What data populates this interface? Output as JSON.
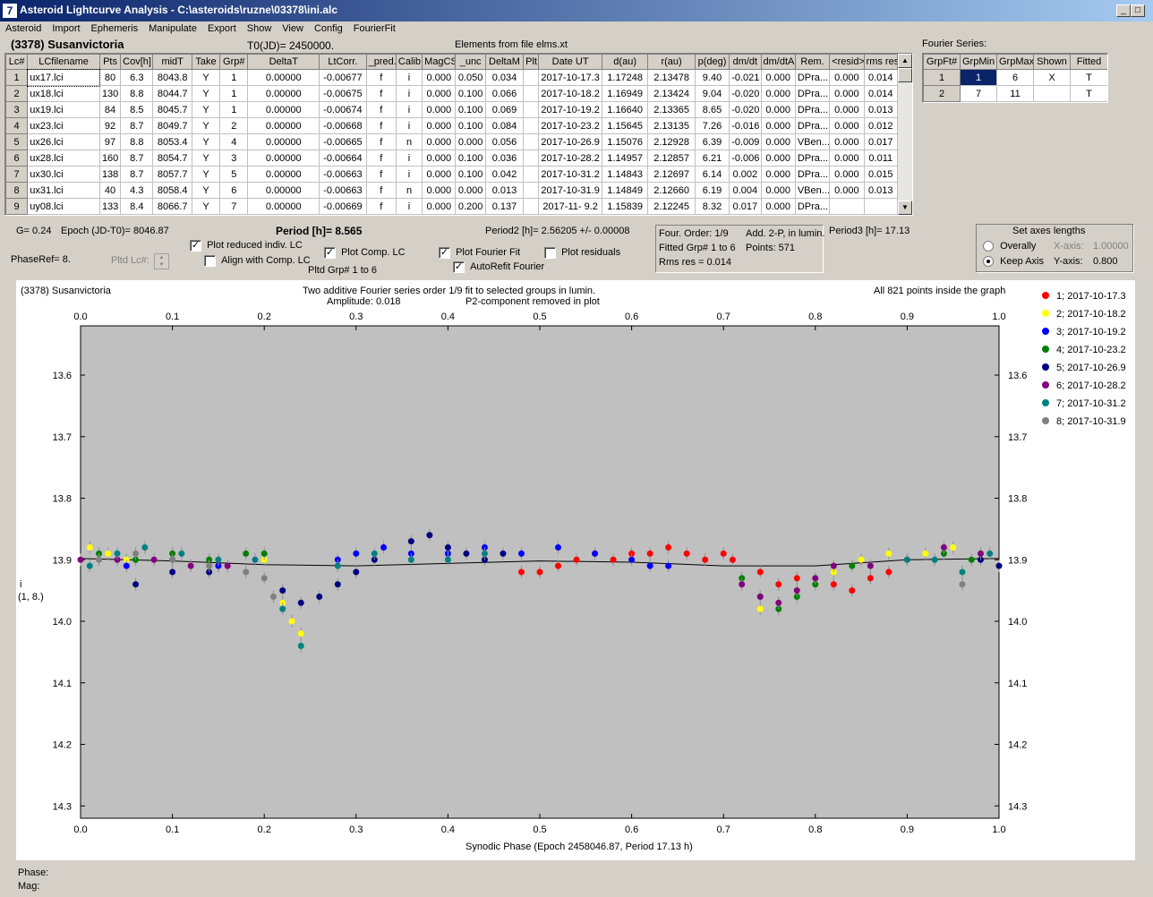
{
  "window": {
    "title": "Asteroid Lightcurve Analysis - C:\\asteroids\\ruzne\\03378\\ini.alc",
    "icon": "app-icon"
  },
  "menu": [
    "Asteroid",
    "Import",
    "Ephemeris",
    "Manipulate",
    "Export",
    "Show",
    "View",
    "Config",
    "FourierFit"
  ],
  "header": {
    "asteroid": "(3378) Susanvictoria",
    "t0": "T0(JD)= 2450000.",
    "elements": "Elements from file elms.xt"
  },
  "lc_table": {
    "columns": [
      "Lc#",
      "LCfilename",
      "Pts",
      "Cov[h]",
      "midT",
      "Take",
      "Grp#",
      "DeltaT",
      "LtCorr.",
      "_pred.",
      "Calib.",
      "MagCS",
      "_unc",
      "DeltaM",
      "Plt",
      "Date UT",
      "d(au)",
      "r(au)",
      "p(deg)",
      "dm/dt",
      "dm/dtA",
      "Rem.",
      "<resid>",
      "rms res"
    ],
    "rows": [
      [
        "1",
        "ux17.lci",
        "80",
        "6.3",
        "8043.8",
        "Y",
        "1",
        "0.00000",
        "-0.00677",
        "f",
        "i",
        "0.000",
        "0.050",
        "0.034",
        "",
        "2017-10-17.3",
        "1.17248",
        "2.13478",
        "9.40",
        "-0.021",
        "0.000",
        "DPra...",
        "0.000",
        "0.014"
      ],
      [
        "2",
        "ux18.lci",
        "130",
        "8.8",
        "8044.7",
        "Y",
        "1",
        "0.00000",
        "-0.00675",
        "f",
        "i",
        "0.000",
        "0.100",
        "0.066",
        "",
        "2017-10-18.2",
        "1.16949",
        "2.13424",
        "9.04",
        "-0.020",
        "0.000",
        "DPra...",
        "0.000",
        "0.014"
      ],
      [
        "3",
        "ux19.lci",
        "84",
        "8.5",
        "8045.7",
        "Y",
        "1",
        "0.00000",
        "-0.00674",
        "f",
        "i",
        "0.000",
        "0.100",
        "0.069",
        "",
        "2017-10-19.2",
        "1.16640",
        "2.13365",
        "8.65",
        "-0.020",
        "0.000",
        "DPra...",
        "0.000",
        "0.013"
      ],
      [
        "4",
        "ux23.lci",
        "92",
        "8.7",
        "8049.7",
        "Y",
        "2",
        "0.00000",
        "-0.00668",
        "f",
        "i",
        "0.000",
        "0.100",
        "0.084",
        "",
        "2017-10-23.2",
        "1.15645",
        "2.13135",
        "7.26",
        "-0.016",
        "0.000",
        "DPra...",
        "0.000",
        "0.012"
      ],
      [
        "5",
        "ux26.lci",
        "97",
        "8.8",
        "8053.4",
        "Y",
        "4",
        "0.00000",
        "-0.00665",
        "f",
        "n",
        "0.000",
        "0.000",
        "0.056",
        "",
        "2017-10-26.9",
        "1.15076",
        "2.12928",
        "6.39",
        "-0.009",
        "0.000",
        "VBen...",
        "0.000",
        "0.017"
      ],
      [
        "6",
        "ux28.lci",
        "160",
        "8.7",
        "8054.7",
        "Y",
        "3",
        "0.00000",
        "-0.00664",
        "f",
        "i",
        "0.000",
        "0.100",
        "0.036",
        "",
        "2017-10-28.2",
        "1.14957",
        "2.12857",
        "6.21",
        "-0.006",
        "0.000",
        "DPra...",
        "0.000",
        "0.011"
      ],
      [
        "7",
        "ux30.lci",
        "138",
        "8.7",
        "8057.7",
        "Y",
        "5",
        "0.00000",
        "-0.00663",
        "f",
        "i",
        "0.000",
        "0.100",
        "0.042",
        "",
        "2017-10-31.2",
        "1.14843",
        "2.12697",
        "6.14",
        "0.002",
        "0.000",
        "DPra...",
        "0.000",
        "0.015"
      ],
      [
        "8",
        "ux31.lci",
        "40",
        "4.3",
        "8058.4",
        "Y",
        "6",
        "0.00000",
        "-0.00663",
        "f",
        "n",
        "0.000",
        "0.000",
        "0.013",
        "",
        "2017-10-31.9",
        "1.14849",
        "2.12660",
        "6.19",
        "0.004",
        "0.000",
        "VBen...",
        "0.000",
        "0.013"
      ],
      [
        "9",
        "uy08.lci",
        "133",
        "8.4",
        "8066.7",
        "Y",
        "7",
        "0.00000",
        "-0.00669",
        "f",
        "i",
        "0.000",
        "0.200",
        "0.137",
        "",
        "2017-11- 9.2",
        "1.15839",
        "2.12245",
        "8.32",
        "0.017",
        "0.000",
        "DPra...",
        "",
        ""
      ]
    ]
  },
  "fourier_series": {
    "title": "Fourier Series:",
    "columns": [
      "GrpFt#",
      "GrpMin",
      "GrpMax",
      "Shown",
      "Fitted"
    ],
    "rows": [
      [
        "1",
        "1",
        "6",
        "X",
        "T"
      ],
      [
        "2",
        "7",
        "11",
        "",
        "T"
      ]
    ]
  },
  "params": {
    "g": "G= 0.24",
    "epoch": "Epoch (JD-T0)= 8046.87",
    "period": "Period [h]= 8.565",
    "period2": "Period2 [h]= 2.56205 +/- 0.00008",
    "period3": "Period3 [h]= 17.13",
    "phaseref": "PhaseRef= 8.",
    "pltd_lc": "Pltd Lc#:",
    "pltd_grp": "Pltd Grp#  1   to   6"
  },
  "checkboxes": {
    "plot_reduced": {
      "label": "Plot reduced indiv. LC",
      "checked": true
    },
    "align_comp": {
      "label": "Align with Comp. LC",
      "checked": false
    },
    "plot_comp": {
      "label": "Plot Comp. LC",
      "checked": true
    },
    "plot_fourier": {
      "label": "Plot Fourier Fit",
      "checked": true
    },
    "autorefit": {
      "label": "AutoRefit Fourier",
      "checked": true
    },
    "plot_residuals": {
      "label": "Plot residuals",
      "checked": false
    }
  },
  "fourier_info": {
    "order": "Four. Order:  1/9",
    "add": "Add. 2-P, in lumin.",
    "fitted": "Fitted Grp# 1 to 6",
    "points": "Points: 571",
    "rms": "Rms res      = 0.014"
  },
  "axes_box": {
    "title": "Set axes lengths",
    "overally": "Overally",
    "keep": "Keep Axis",
    "xaxis_label": "X-axis:",
    "xaxis_val": "1.00000",
    "yaxis_label": "Y-axis:",
    "yaxis_val": "0.800",
    "selected": "keep"
  },
  "plot": {
    "name": "(3378) Susanvictoria",
    "title1": "Two additive Fourier series order 1/9 fit to selected groups in lumin.",
    "title2": "Amplitude: 0.018",
    "title3": "P2-component removed in plot",
    "points_note": "All 821 points inside the graph",
    "ylabel1": "i",
    "ylabel2": "(1, 8.)",
    "xlabel": "Synodic Phase (Epoch 2458046.87, Period 17.13 h)",
    "background": "#c0c0c0"
  },
  "chart_data": {
    "type": "scatter",
    "xlim": [
      0,
      1
    ],
    "ylim": [
      13.52,
      14.32
    ],
    "y_reversed": true,
    "x_ticks": [
      "0.0",
      "0.1",
      "0.2",
      "0.3",
      "0.4",
      "0.5",
      "0.6",
      "0.7",
      "0.8",
      "0.9",
      "1.0"
    ],
    "y_ticks": [
      "13.6",
      "13.7",
      "13.8",
      "13.9",
      "14.0",
      "14.1",
      "14.2",
      "14.3"
    ],
    "legend_position": "right",
    "series": [
      {
        "name": "1; 2017-10-17.3",
        "color": "#ff0000",
        "points": [
          [
            0.48,
            13.92
          ],
          [
            0.5,
            13.92
          ],
          [
            0.52,
            13.91
          ],
          [
            0.54,
            13.9
          ],
          [
            0.56,
            13.89
          ],
          [
            0.58,
            13.9
          ],
          [
            0.6,
            13.89
          ],
          [
            0.62,
            13.89
          ],
          [
            0.64,
            13.88
          ],
          [
            0.66,
            13.89
          ],
          [
            0.68,
            13.9
          ],
          [
            0.7,
            13.89
          ],
          [
            0.71,
            13.9
          ],
          [
            0.74,
            13.92
          ],
          [
            0.76,
            13.94
          ],
          [
            0.78,
            13.93
          ],
          [
            0.82,
            13.94
          ],
          [
            0.84,
            13.95
          ],
          [
            0.86,
            13.93
          ],
          [
            0.88,
            13.92
          ]
        ]
      },
      {
        "name": "2; 2017-10-18.2",
        "color": "#ffff00",
        "points": [
          [
            0.01,
            13.88
          ],
          [
            0.03,
            13.89
          ],
          [
            0.05,
            13.9
          ],
          [
            0.08,
            13.9
          ],
          [
            0.12,
            13.91
          ],
          [
            0.15,
            13.91
          ],
          [
            0.2,
            13.9
          ],
          [
            0.22,
            13.97
          ],
          [
            0.23,
            14.0
          ],
          [
            0.24,
            14.02
          ],
          [
            0.74,
            13.98
          ],
          [
            0.76,
            13.97
          ],
          [
            0.78,
            13.95
          ],
          [
            0.82,
            13.92
          ],
          [
            0.85,
            13.9
          ],
          [
            0.88,
            13.89
          ],
          [
            0.92,
            13.89
          ],
          [
            0.95,
            13.88
          ],
          [
            0.98,
            13.89
          ]
        ]
      },
      {
        "name": "3; 2017-10-19.2",
        "color": "#0000ff",
        "points": [
          [
            0.28,
            13.9
          ],
          [
            0.3,
            13.89
          ],
          [
            0.33,
            13.88
          ],
          [
            0.36,
            13.89
          ],
          [
            0.4,
            13.89
          ],
          [
            0.44,
            13.88
          ],
          [
            0.48,
            13.89
          ],
          [
            0.52,
            13.88
          ],
          [
            0.56,
            13.89
          ],
          [
            0.6,
            13.9
          ],
          [
            0.62,
            13.91
          ],
          [
            0.64,
            13.91
          ],
          [
            0.05,
            13.91
          ],
          [
            0.1,
            13.9
          ],
          [
            0.15,
            13.91
          ]
        ]
      },
      {
        "name": "4; 2017-10-23.2",
        "color": "#008000",
        "points": [
          [
            0.02,
            13.89
          ],
          [
            0.06,
            13.9
          ],
          [
            0.1,
            13.89
          ],
          [
            0.14,
            13.9
          ],
          [
            0.18,
            13.89
          ],
          [
            0.2,
            13.89
          ],
          [
            0.72,
            13.93
          ],
          [
            0.74,
            13.96
          ],
          [
            0.76,
            13.98
          ],
          [
            0.78,
            13.96
          ],
          [
            0.8,
            13.94
          ],
          [
            0.84,
            13.91
          ],
          [
            0.94,
            13.89
          ],
          [
            0.97,
            13.9
          ]
        ]
      },
      {
        "name": "5; 2017-10-26.9",
        "color": "#000080",
        "points": [
          [
            0.06,
            13.94
          ],
          [
            0.1,
            13.92
          ],
          [
            0.14,
            13.92
          ],
          [
            0.22,
            13.95
          ],
          [
            0.24,
            13.97
          ],
          [
            0.26,
            13.96
          ],
          [
            0.28,
            13.94
          ],
          [
            0.3,
            13.92
          ],
          [
            0.32,
            13.9
          ],
          [
            0.36,
            13.87
          ],
          [
            0.38,
            13.86
          ],
          [
            0.4,
            13.88
          ],
          [
            0.42,
            13.89
          ],
          [
            0.44,
            13.9
          ],
          [
            0.46,
            13.89
          ],
          [
            0.98,
            13.9
          ],
          [
            1.0,
            13.91
          ]
        ]
      },
      {
        "name": "6; 2017-10-28.2",
        "color": "#800080",
        "points": [
          [
            0.0,
            13.9
          ],
          [
            0.04,
            13.9
          ],
          [
            0.08,
            13.9
          ],
          [
            0.12,
            13.91
          ],
          [
            0.16,
            13.91
          ],
          [
            0.72,
            13.94
          ],
          [
            0.74,
            13.96
          ],
          [
            0.76,
            13.97
          ],
          [
            0.78,
            13.95
          ],
          [
            0.8,
            13.93
          ],
          [
            0.82,
            13.91
          ],
          [
            0.86,
            13.91
          ],
          [
            0.9,
            13.9
          ],
          [
            0.94,
            13.88
          ],
          [
            0.98,
            13.89
          ]
        ]
      },
      {
        "name": "7; 2017-10-31.2",
        "color": "#008080",
        "points": [
          [
            0.01,
            13.91
          ],
          [
            0.04,
            13.89
          ],
          [
            0.07,
            13.88
          ],
          [
            0.11,
            13.89
          ],
          [
            0.15,
            13.9
          ],
          [
            0.19,
            13.9
          ],
          [
            0.22,
            13.98
          ],
          [
            0.24,
            14.04
          ],
          [
            0.28,
            13.91
          ],
          [
            0.32,
            13.89
          ],
          [
            0.36,
            13.9
          ],
          [
            0.4,
            13.9
          ],
          [
            0.44,
            13.89
          ],
          [
            0.9,
            13.9
          ],
          [
            0.93,
            13.9
          ],
          [
            0.96,
            13.92
          ],
          [
            0.99,
            13.89
          ]
        ]
      },
      {
        "name": "8; 2017-10-31.9",
        "color": "#808080",
        "points": [
          [
            0.02,
            13.9
          ],
          [
            0.06,
            13.89
          ],
          [
            0.1,
            13.9
          ],
          [
            0.14,
            13.91
          ],
          [
            0.18,
            13.92
          ],
          [
            0.2,
            13.93
          ],
          [
            0.21,
            13.96
          ],
          [
            0.96,
            13.94
          ]
        ]
      }
    ],
    "fourier_fit": [
      [
        0.0,
        13.898
      ],
      [
        0.1,
        13.902
      ],
      [
        0.2,
        13.908
      ],
      [
        0.3,
        13.91
      ],
      [
        0.4,
        13.906
      ],
      [
        0.5,
        13.902
      ],
      [
        0.6,
        13.904
      ],
      [
        0.7,
        13.91
      ],
      [
        0.8,
        13.91
      ],
      [
        0.9,
        13.9
      ],
      [
        1.0,
        13.898
      ]
    ]
  },
  "status": {
    "phase": "Phase:",
    "mag": "Mag:"
  }
}
